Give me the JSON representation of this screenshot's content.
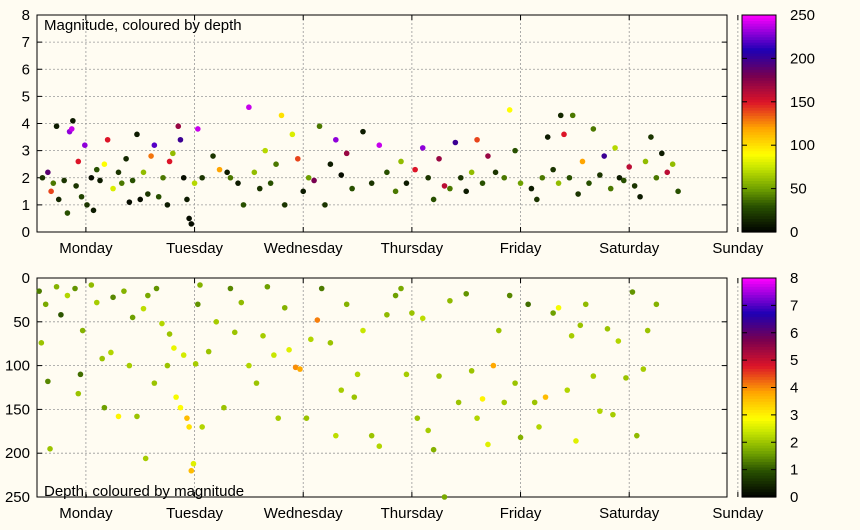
{
  "chart_data": [
    {
      "type": "scatter",
      "title": "Magnitude, coloured by depth",
      "xlabel": "",
      "ylabel": "",
      "ylim": [
        0,
        8
      ],
      "yticks": [
        0,
        1,
        2,
        3,
        4,
        5,
        6,
        7,
        8
      ],
      "x_tick_labels": [
        "Monday",
        "Tuesday",
        "Wednesday",
        "Thursday",
        "Friday",
        "Saturday",
        "Sunday"
      ],
      "grid": true,
      "colorbar": {
        "range": [
          0,
          250
        ],
        "ticks": [
          0,
          50,
          100,
          150,
          200,
          250
        ]
      },
      "points": [
        [
          0.05,
          2.0,
          20
        ],
        [
          0.1,
          2.2,
          190
        ],
        [
          0.13,
          1.5,
          140
        ],
        [
          0.15,
          1.8,
          40
        ],
        [
          0.18,
          3.9,
          10
        ],
        [
          0.2,
          1.2,
          15
        ],
        [
          0.25,
          1.9,
          20
        ],
        [
          0.28,
          0.7,
          30
        ],
        [
          0.3,
          3.7,
          230
        ],
        [
          0.32,
          3.8,
          240
        ],
        [
          0.33,
          4.1,
          10
        ],
        [
          0.36,
          1.7,
          20
        ],
        [
          0.38,
          2.6,
          150
        ],
        [
          0.41,
          1.3,
          25
        ],
        [
          0.44,
          3.2,
          230
        ],
        [
          0.46,
          1.0,
          20
        ],
        [
          0.5,
          2.0,
          5
        ],
        [
          0.52,
          0.8,
          10
        ],
        [
          0.55,
          2.3,
          30
        ],
        [
          0.58,
          1.9,
          10
        ],
        [
          0.62,
          2.5,
          90
        ],
        [
          0.65,
          3.4,
          150
        ],
        [
          0.7,
          1.6,
          80
        ],
        [
          0.75,
          2.2,
          20
        ],
        [
          0.78,
          1.8,
          40
        ],
        [
          0.82,
          2.7,
          15
        ],
        [
          0.85,
          1.1,
          5
        ],
        [
          0.88,
          1.9,
          30
        ],
        [
          0.92,
          3.6,
          10
        ],
        [
          0.95,
          1.2,
          5
        ],
        [
          0.98,
          2.2,
          60
        ],
        [
          1.02,
          1.4,
          20
        ],
        [
          1.05,
          2.8,
          130
        ],
        [
          1.08,
          3.2,
          220
        ],
        [
          1.12,
          1.3,
          30
        ],
        [
          1.16,
          2.0,
          40
        ],
        [
          1.2,
          1.0,
          10
        ],
        [
          1.22,
          2.6,
          150
        ],
        [
          1.25,
          2.9,
          60
        ],
        [
          1.3,
          3.9,
          170
        ],
        [
          1.32,
          3.4,
          200
        ],
        [
          1.35,
          2.0,
          5
        ],
        [
          1.38,
          1.2,
          10
        ],
        [
          1.4,
          0.5,
          5
        ],
        [
          1.42,
          0.3,
          5
        ],
        [
          1.45,
          1.8,
          70
        ],
        [
          1.48,
          3.8,
          240
        ],
        [
          1.52,
          2.0,
          20
        ],
        [
          1.62,
          2.8,
          20
        ],
        [
          1.68,
          2.3,
          120
        ],
        [
          1.75,
          2.2,
          10
        ],
        [
          1.78,
          2.0,
          40
        ],
        [
          1.85,
          1.8,
          10
        ],
        [
          1.9,
          1.0,
          30
        ],
        [
          1.95,
          4.6,
          240
        ],
        [
          2.0,
          2.2,
          60
        ],
        [
          2.05,
          1.6,
          20
        ],
        [
          2.1,
          3.0,
          70
        ],
        [
          2.15,
          1.8,
          30
        ],
        [
          2.2,
          2.5,
          40
        ],
        [
          2.25,
          4.3,
          100
        ],
        [
          2.28,
          1.0,
          20
        ],
        [
          2.35,
          3.6,
          80
        ],
        [
          2.4,
          2.7,
          140
        ],
        [
          2.45,
          1.5,
          10
        ],
        [
          2.5,
          2.0,
          50
        ],
        [
          2.55,
          1.9,
          180
        ],
        [
          2.6,
          3.9,
          40
        ],
        [
          2.65,
          1.0,
          20
        ],
        [
          2.7,
          2.5,
          10
        ],
        [
          2.75,
          3.4,
          230
        ],
        [
          2.8,
          2.1,
          5
        ],
        [
          2.85,
          2.9,
          170
        ],
        [
          2.9,
          1.6,
          30
        ],
        [
          3.0,
          3.7,
          10
        ],
        [
          3.08,
          1.8,
          20
        ],
        [
          3.15,
          3.2,
          240
        ],
        [
          3.22,
          2.2,
          30
        ],
        [
          3.3,
          1.5,
          40
        ],
        [
          3.35,
          2.6,
          60
        ],
        [
          3.4,
          1.8,
          10
        ],
        [
          3.48,
          2.3,
          150
        ],
        [
          3.55,
          3.1,
          230
        ],
        [
          3.6,
          2.0,
          20
        ],
        [
          3.65,
          1.2,
          30
        ],
        [
          3.7,
          2.7,
          170
        ],
        [
          3.75,
          1.7,
          160
        ],
        [
          3.8,
          1.6,
          40
        ],
        [
          3.85,
          3.3,
          200
        ],
        [
          3.9,
          2.0,
          20
        ],
        [
          3.95,
          1.5,
          10
        ],
        [
          4.0,
          2.2,
          60
        ],
        [
          4.05,
          3.4,
          140
        ],
        [
          4.1,
          1.8,
          30
        ],
        [
          4.15,
          2.8,
          170
        ],
        [
          4.22,
          2.2,
          20
        ],
        [
          4.3,
          2.0,
          40
        ],
        [
          4.35,
          4.5,
          90
        ],
        [
          4.4,
          3.0,
          30
        ],
        [
          4.45,
          1.8,
          50
        ],
        [
          4.55,
          1.6,
          10
        ],
        [
          4.6,
          1.2,
          20
        ],
        [
          4.65,
          2.0,
          40
        ],
        [
          4.7,
          3.5,
          10
        ],
        [
          4.75,
          2.3,
          20
        ],
        [
          4.8,
          1.8,
          60
        ],
        [
          4.82,
          4.3,
          15
        ],
        [
          4.85,
          3.6,
          150
        ],
        [
          4.9,
          2.0,
          30
        ],
        [
          4.93,
          4.3,
          40
        ],
        [
          4.98,
          1.4,
          20
        ],
        [
          5.02,
          2.6,
          120
        ],
        [
          5.08,
          1.8,
          30
        ],
        [
          5.12,
          3.8,
          40
        ],
        [
          5.18,
          2.1,
          20
        ],
        [
          5.22,
          2.8,
          200
        ],
        [
          5.28,
          1.6,
          40
        ],
        [
          5.32,
          3.1,
          70
        ],
        [
          5.36,
          2.0,
          10
        ],
        [
          5.4,
          1.9,
          30
        ],
        [
          5.45,
          2.4,
          160
        ],
        [
          5.5,
          1.7,
          20
        ],
        [
          5.55,
          1.3,
          10
        ],
        [
          5.6,
          2.6,
          60
        ],
        [
          5.65,
          3.5,
          20
        ],
        [
          5.7,
          2.0,
          40
        ],
        [
          5.75,
          2.9,
          10
        ],
        [
          5.8,
          2.2,
          160
        ],
        [
          5.85,
          2.5,
          60
        ],
        [
          5.9,
          1.5,
          30
        ]
      ]
    },
    {
      "type": "scatter",
      "title": "Depth, coloured by magnitude",
      "xlabel": "",
      "ylabel": "",
      "ylim": [
        250,
        0
      ],
      "yticks": [
        0,
        50,
        100,
        150,
        200,
        250
      ],
      "x_tick_labels": [
        "Monday",
        "Tuesday",
        "Wednesday",
        "Thursday",
        "Friday",
        "Saturday",
        "Sunday"
      ],
      "grid": true,
      "colorbar": {
        "range": [
          0,
          8
        ],
        "ticks": [
          0,
          1,
          2,
          3,
          4,
          5,
          6,
          7,
          8
        ]
      },
      "points": [
        [
          0.02,
          15,
          1.3
        ],
        [
          0.04,
          74,
          2.0
        ],
        [
          0.08,
          30,
          1.7
        ],
        [
          0.1,
          118,
          1.4
        ],
        [
          0.12,
          195,
          2.0
        ],
        [
          0.18,
          10,
          1.8
        ],
        [
          0.22,
          42,
          1.0
        ],
        [
          0.28,
          20,
          2.2
        ],
        [
          0.35,
          12,
          1.5
        ],
        [
          0.38,
          132,
          2.0
        ],
        [
          0.4,
          110,
          1.2
        ],
        [
          0.42,
          60,
          1.8
        ],
        [
          0.5,
          8,
          1.9
        ],
        [
          0.55,
          28,
          2.1
        ],
        [
          0.6,
          92,
          2.0
        ],
        [
          0.62,
          148,
          1.6
        ],
        [
          0.68,
          85,
          2.2
        ],
        [
          0.7,
          22,
          1.4
        ],
        [
          0.75,
          158,
          3.0
        ],
        [
          0.8,
          15,
          1.8
        ],
        [
          0.85,
          100,
          2.1
        ],
        [
          0.88,
          45,
          1.6
        ],
        [
          0.92,
          158,
          2.0
        ],
        [
          0.98,
          35,
          2.3
        ],
        [
          1.0,
          206,
          2.1
        ],
        [
          1.02,
          20,
          1.7
        ],
        [
          1.08,
          120,
          2.0
        ],
        [
          1.1,
          12,
          1.5
        ],
        [
          1.15,
          52,
          2.2
        ],
        [
          1.2,
          100,
          2.0
        ],
        [
          1.22,
          64,
          2.0
        ],
        [
          1.26,
          80,
          2.7
        ],
        [
          1.28,
          136,
          2.8
        ],
        [
          1.32,
          148,
          2.9
        ],
        [
          1.35,
          88,
          2.5
        ],
        [
          1.38,
          160,
          3.6
        ],
        [
          1.4,
          170,
          3.2
        ],
        [
          1.42,
          220,
          3.6
        ],
        [
          1.44,
          212,
          2.6
        ],
        [
          1.46,
          98,
          2.1
        ],
        [
          1.48,
          30,
          1.5
        ],
        [
          1.5,
          8,
          1.8
        ],
        [
          1.52,
          170,
          2.2
        ],
        [
          1.58,
          84,
          2.0
        ],
        [
          1.65,
          50,
          2.1
        ],
        [
          1.72,
          148,
          2.0
        ],
        [
          1.78,
          12,
          1.4
        ],
        [
          1.82,
          62,
          2.0
        ],
        [
          1.88,
          28,
          1.9
        ],
        [
          1.95,
          100,
          2.2
        ],
        [
          2.02,
          120,
          2.0
        ],
        [
          2.08,
          66,
          2.1
        ],
        [
          2.12,
          10,
          1.6
        ],
        [
          2.18,
          88,
          2.4
        ],
        [
          2.22,
          160,
          2.1
        ],
        [
          2.28,
          34,
          1.8
        ],
        [
          2.32,
          82,
          2.6
        ],
        [
          2.38,
          102,
          4.0
        ],
        [
          2.42,
          104,
          3.8
        ],
        [
          2.48,
          160,
          2.0
        ],
        [
          2.52,
          70,
          2.2
        ],
        [
          2.58,
          48,
          4.1
        ],
        [
          2.62,
          12,
          1.3
        ],
        [
          2.7,
          74,
          2.0
        ],
        [
          2.75,
          180,
          2.3
        ],
        [
          2.8,
          128,
          2.1
        ],
        [
          2.85,
          30,
          1.8
        ],
        [
          2.92,
          136,
          2.0
        ],
        [
          2.95,
          110,
          2.2
        ],
        [
          3.0,
          60,
          2.4
        ],
        [
          3.08,
          180,
          2.0
        ],
        [
          3.15,
          192,
          2.2
        ],
        [
          3.22,
          42,
          1.9
        ],
        [
          3.3,
          20,
          1.6
        ],
        [
          3.35,
          12,
          1.7
        ],
        [
          3.4,
          110,
          2.1
        ],
        [
          3.45,
          40,
          2.0
        ],
        [
          3.5,
          160,
          2.0
        ],
        [
          3.55,
          46,
          2.3
        ],
        [
          3.6,
          174,
          2.1
        ],
        [
          3.65,
          196,
          1.8
        ],
        [
          3.7,
          112,
          2.0
        ],
        [
          3.75,
          250,
          1.7
        ],
        [
          3.8,
          26,
          1.9
        ],
        [
          3.88,
          142,
          2.0
        ],
        [
          3.95,
          18,
          1.5
        ],
        [
          4.0,
          106,
          2.0
        ],
        [
          4.05,
          160,
          2.2
        ],
        [
          4.1,
          138,
          3.0
        ],
        [
          4.15,
          190,
          2.6
        ],
        [
          4.2,
          100,
          3.8
        ],
        [
          4.25,
          60,
          2.0
        ],
        [
          4.3,
          142,
          2.1
        ],
        [
          4.35,
          20,
          1.4
        ],
        [
          4.4,
          120,
          2.0
        ],
        [
          4.45,
          182,
          1.8
        ],
        [
          4.52,
          30,
          1.2
        ],
        [
          4.58,
          142,
          2.0
        ],
        [
          4.62,
          170,
          2.2
        ],
        [
          4.68,
          136,
          3.6
        ],
        [
          4.75,
          40,
          1.6
        ],
        [
          4.8,
          34,
          2.8
        ],
        [
          4.88,
          128,
          2.2
        ],
        [
          4.92,
          66,
          2.1
        ],
        [
          4.96,
          186,
          2.6
        ],
        [
          5.0,
          54,
          2.0
        ],
        [
          5.05,
          30,
          1.9
        ],
        [
          5.12,
          112,
          2.1
        ],
        [
          5.18,
          152,
          2.2
        ],
        [
          5.25,
          58,
          2.0
        ],
        [
          5.3,
          156,
          2.1
        ],
        [
          5.35,
          72,
          2.2
        ],
        [
          5.42,
          114,
          2.0
        ],
        [
          5.48,
          16,
          1.5
        ],
        [
          5.52,
          180,
          1.9
        ],
        [
          5.58,
          104,
          2.1
        ],
        [
          5.62,
          60,
          2.0
        ],
        [
          5.7,
          30,
          1.8
        ]
      ]
    }
  ]
}
